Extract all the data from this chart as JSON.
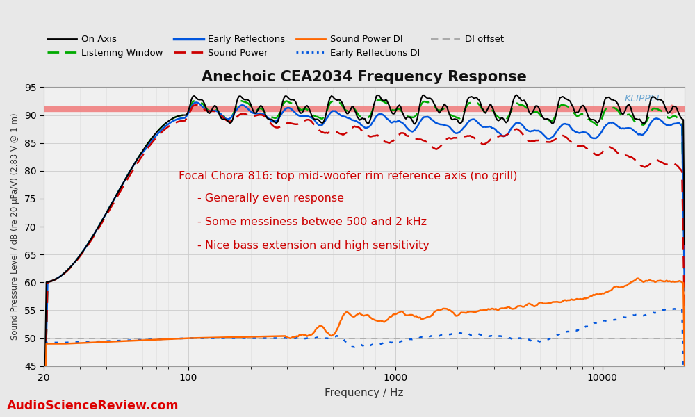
{
  "title": "Anechoic CEA2034 Frequency Response",
  "xlabel": "Frequency / Hz",
  "ylabel": "Sound Pressure Level / dB (re 20 μPa/V) (2.83 V @ 1 m)",
  "ylim": [
    45,
    95
  ],
  "xlim": [
    20,
    25000
  ],
  "yticks": [
    45,
    50,
    55,
    60,
    65,
    70,
    75,
    80,
    85,
    90,
    95
  ],
  "annotation_title": "Focal Chora 816: top mid-woofer rim reference axis (no grill)",
  "annotation_lines": [
    "- Generally even response",
    "- Some messiness betwee 500 and 2 kHz",
    "- Nice bass extension and high sensitivity"
  ],
  "watermark": "KLIPPEL",
  "asr_text": "AudioScienceReview.com",
  "background_color": "#e8e8e8",
  "plot_background": "#f0f0f0",
  "sound_power_line_y": 91.0,
  "sound_power_line_color": "#f08080",
  "sound_power_line_alpha": 0.9,
  "sound_power_line_lw": 6
}
